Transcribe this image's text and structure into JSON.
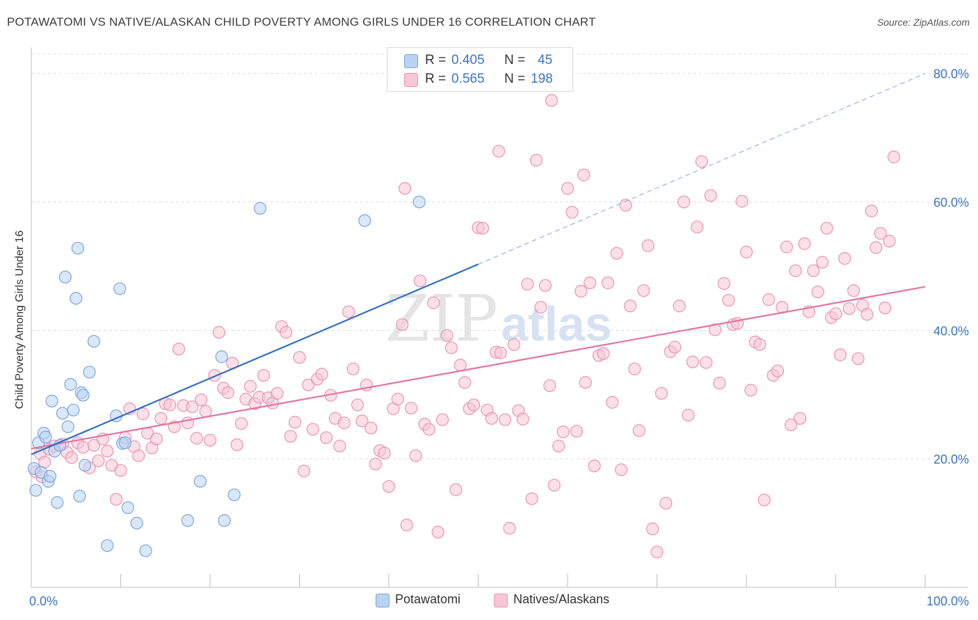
{
  "header": {
    "title": "POTAWATOMI VS NATIVE/ALASKAN CHILD POVERTY AMONG GIRLS UNDER 16 CORRELATION CHART",
    "source": "Source: ZipAtlas.com"
  },
  "watermark": {
    "zip": "ZIP",
    "atlas": "atlas"
  },
  "legend_top": {
    "rows": [
      {
        "r_label": "R =",
        "r_value": "0.405",
        "n_label": "N =",
        "n_value": "45"
      },
      {
        "r_label": "R =",
        "r_value": "0.565",
        "n_label": "N =",
        "n_value": "198"
      }
    ]
  },
  "legend_bottom": {
    "items": [
      {
        "label": "Potawatomi"
      },
      {
        "label": "Natives/Alaskans"
      }
    ]
  },
  "colors": {
    "blue_fill": "#b9d3f3",
    "blue_stroke": "#7aa6dd",
    "blue_line": "#2d6ec8",
    "pink_fill": "#f8c6d6",
    "pink_stroke": "#e993b2",
    "pink_line": "#e4739e",
    "tick_label": "#3a74c4",
    "grid": "#dcdcdc"
  },
  "chart_data": {
    "type": "scatter",
    "title": "POTAWATOMI VS NATIVE/ALASKAN CHILD POVERTY AMONG GIRLS UNDER 16 CORRELATION CHART",
    "xlabel": "",
    "ylabel": "Child Poverty Among Girls Under 16",
    "xlim": [
      0,
      100
    ],
    "ylim": [
      0,
      83
    ],
    "x_tick_labels": [
      "0.0%",
      "100.0%"
    ],
    "y_ticks": [
      20,
      40,
      60,
      80
    ],
    "y_tick_labels": [
      "20.0%",
      "40.0%",
      "60.0%",
      "80.0%"
    ],
    "grid": true,
    "legend_position": "top-center",
    "series": [
      {
        "name": "Potawatomi",
        "R": 0.405,
        "N": 45,
        "trend": {
          "x": [
            0,
            50
          ],
          "y": [
            20.7,
            50.3
          ]
        },
        "trend_extension": {
          "x": [
            50,
            100
          ],
          "y": [
            50.3,
            80.0
          ]
        },
        "points": [
          [
            0.3,
            18.5
          ],
          [
            0.5,
            15.1
          ],
          [
            0.8,
            22.5
          ],
          [
            1.1,
            17.9
          ],
          [
            1.4,
            24.0
          ],
          [
            1.6,
            23.4
          ],
          [
            1.9,
            16.5
          ],
          [
            2.1,
            17.3
          ],
          [
            2.3,
            29.0
          ],
          [
            2.6,
            21.2
          ],
          [
            2.9,
            13.2
          ],
          [
            3.2,
            22.1
          ],
          [
            3.5,
            27.1
          ],
          [
            3.8,
            48.3
          ],
          [
            4.1,
            25.0
          ],
          [
            4.4,
            31.6
          ],
          [
            4.7,
            27.6
          ],
          [
            5.0,
            45.0
          ],
          [
            5.2,
            52.8
          ],
          [
            5.4,
            14.2
          ],
          [
            5.6,
            30.3
          ],
          [
            5.8,
            29.9
          ],
          [
            6.0,
            19.0
          ],
          [
            6.5,
            33.5
          ],
          [
            7.0,
            38.3
          ],
          [
            8.5,
            6.5
          ],
          [
            9.5,
            26.7
          ],
          [
            9.9,
            46.5
          ],
          [
            10.2,
            22.4
          ],
          [
            10.5,
            22.5
          ],
          [
            10.8,
            12.4
          ],
          [
            11.8,
            10.0
          ],
          [
            12.8,
            5.7
          ],
          [
            17.5,
            10.4
          ],
          [
            18.9,
            16.5
          ],
          [
            21.3,
            35.9
          ],
          [
            21.6,
            10.4
          ],
          [
            22.7,
            14.4
          ],
          [
            25.6,
            59.0
          ],
          [
            37.3,
            57.1
          ],
          [
            43.4,
            60.0
          ]
        ]
      },
      {
        "name": "Natives/Alaskans",
        "R": 0.565,
        "N": 198,
        "trend": {
          "x": [
            0,
            100
          ],
          "y": [
            21.6,
            46.8
          ]
        },
        "points": [
          [
            0.5,
            18.0
          ],
          [
            1.0,
            20.8
          ],
          [
            1.2,
            17.2
          ],
          [
            1.5,
            19.5
          ],
          [
            2.0,
            21.5
          ],
          [
            2.6,
            22.0
          ],
          [
            3.5,
            22.3
          ],
          [
            4.0,
            21.0
          ],
          [
            4.5,
            20.2
          ],
          [
            5.2,
            22.5
          ],
          [
            5.8,
            21.8
          ],
          [
            6.5,
            18.6
          ],
          [
            7.0,
            22.1
          ],
          [
            7.5,
            19.7
          ],
          [
            8.0,
            23.1
          ],
          [
            8.5,
            21.2
          ],
          [
            9.0,
            19.0
          ],
          [
            9.5,
            13.7
          ],
          [
            10.0,
            18.2
          ],
          [
            10.5,
            23.3
          ],
          [
            11.0,
            27.8
          ],
          [
            11.5,
            21.9
          ],
          [
            12.0,
            20.5
          ],
          [
            12.5,
            27.0
          ],
          [
            13.0,
            24.0
          ],
          [
            13.5,
            21.7
          ],
          [
            14.0,
            23.1
          ],
          [
            14.5,
            26.3
          ],
          [
            15.0,
            28.6
          ],
          [
            15.5,
            28.4
          ],
          [
            16.0,
            25.0
          ],
          [
            16.5,
            37.1
          ],
          [
            17.0,
            28.3
          ],
          [
            17.5,
            25.6
          ],
          [
            18.0,
            28.1
          ],
          [
            18.5,
            23.2
          ],
          [
            19.0,
            29.2
          ],
          [
            19.5,
            27.4
          ],
          [
            20.0,
            22.9
          ],
          [
            20.5,
            33.0
          ],
          [
            21.0,
            39.7
          ],
          [
            21.5,
            31.0
          ],
          [
            22.0,
            30.3
          ],
          [
            22.5,
            34.9
          ],
          [
            23.0,
            22.2
          ],
          [
            23.5,
            25.5
          ],
          [
            24.0,
            29.3
          ],
          [
            24.5,
            31.3
          ],
          [
            25.0,
            28.6
          ],
          [
            25.5,
            29.6
          ],
          [
            26.0,
            33.0
          ],
          [
            26.5,
            29.5
          ],
          [
            27.0,
            28.7
          ],
          [
            27.5,
            30.2
          ],
          [
            28.0,
            40.6
          ],
          [
            28.5,
            39.7
          ],
          [
            29.0,
            23.5
          ],
          [
            29.5,
            25.7
          ],
          [
            30.0,
            35.8
          ],
          [
            30.5,
            18.1
          ],
          [
            31.0,
            31.5
          ],
          [
            31.5,
            24.6
          ],
          [
            32.0,
            32.4
          ],
          [
            32.5,
            33.2
          ],
          [
            33.0,
            23.3
          ],
          [
            33.5,
            29.9
          ],
          [
            34.0,
            26.3
          ],
          [
            34.5,
            22.0
          ],
          [
            35.0,
            25.6
          ],
          [
            35.5,
            42.9
          ],
          [
            36.0,
            34.0
          ],
          [
            36.5,
            28.4
          ],
          [
            37.0,
            25.9
          ],
          [
            37.5,
            31.5
          ],
          [
            38.0,
            24.8
          ],
          [
            38.5,
            19.2
          ],
          [
            39.0,
            21.3
          ],
          [
            39.5,
            20.9
          ],
          [
            40.0,
            15.7
          ],
          [
            40.5,
            27.8
          ],
          [
            41.0,
            29.3
          ],
          [
            41.5,
            40.9
          ],
          [
            42.0,
            9.7
          ],
          [
            42.5,
            27.9
          ],
          [
            43.0,
            20.5
          ],
          [
            43.5,
            47.7
          ],
          [
            44.0,
            25.4
          ],
          [
            44.5,
            24.6
          ],
          [
            45.0,
            44.3
          ],
          [
            45.5,
            8.6
          ],
          [
            46.0,
            26.1
          ],
          [
            46.5,
            39.2
          ],
          [
            47.0,
            37.3
          ],
          [
            47.5,
            15.2
          ],
          [
            48.0,
            34.6
          ],
          [
            48.5,
            31.9
          ],
          [
            49.0,
            27.8
          ],
          [
            49.5,
            28.4
          ],
          [
            50.0,
            56.0
          ],
          [
            50.5,
            55.9
          ],
          [
            51.0,
            27.6
          ],
          [
            51.5,
            26.3
          ],
          [
            52.0,
            36.6
          ],
          [
            52.5,
            36.5
          ],
          [
            53.0,
            26.1
          ],
          [
            53.5,
            9.2
          ],
          [
            54.0,
            37.8
          ],
          [
            54.5,
            27.5
          ],
          [
            55.0,
            26.2
          ],
          [
            55.5,
            47.2
          ],
          [
            56.0,
            13.8
          ],
          [
            56.5,
            66.5
          ],
          [
            57.0,
            43.6
          ],
          [
            57.5,
            47.0
          ],
          [
            58.0,
            31.4
          ],
          [
            58.5,
            15.9
          ],
          [
            59.0,
            22.0
          ],
          [
            59.5,
            24.2
          ],
          [
            60.0,
            62.1
          ],
          [
            60.5,
            58.4
          ],
          [
            61.0,
            24.3
          ],
          [
            61.5,
            46.1
          ],
          [
            62.0,
            31.9
          ],
          [
            62.5,
            47.4
          ],
          [
            63.0,
            18.9
          ],
          [
            63.5,
            36.1
          ],
          [
            64.0,
            36.4
          ],
          [
            64.5,
            47.4
          ],
          [
            65.0,
            28.8
          ],
          [
            65.5,
            52.0
          ],
          [
            66.0,
            18.3
          ],
          [
            66.5,
            59.5
          ],
          [
            67.0,
            43.8
          ],
          [
            67.5,
            34.0
          ],
          [
            68.0,
            24.4
          ],
          [
            68.5,
            46.2
          ],
          [
            69.0,
            53.2
          ],
          [
            69.5,
            9.1
          ],
          [
            70.0,
            5.5
          ],
          [
            70.5,
            30.2
          ],
          [
            71.0,
            13.1
          ],
          [
            71.5,
            36.7
          ],
          [
            72.0,
            37.4
          ],
          [
            72.5,
            43.8
          ],
          [
            73.0,
            60.0
          ],
          [
            73.5,
            26.8
          ],
          [
            74.0,
            35.1
          ],
          [
            74.5,
            56.1
          ],
          [
            75.0,
            66.3
          ],
          [
            75.5,
            35.0
          ],
          [
            76.0,
            61.0
          ],
          [
            76.5,
            40.1
          ],
          [
            77.0,
            31.8
          ],
          [
            77.5,
            47.3
          ],
          [
            78.0,
            44.7
          ],
          [
            78.5,
            40.9
          ],
          [
            79.0,
            41.1
          ],
          [
            79.5,
            60.1
          ],
          [
            80.0,
            52.2
          ],
          [
            80.5,
            30.7
          ],
          [
            81.0,
            38.2
          ],
          [
            81.5,
            37.8
          ],
          [
            82.0,
            13.6
          ],
          [
            82.5,
            44.8
          ],
          [
            83.0,
            33.0
          ],
          [
            83.5,
            33.7
          ],
          [
            84.0,
            43.6
          ],
          [
            84.5,
            53.0
          ],
          [
            85.0,
            25.3
          ],
          [
            85.5,
            49.3
          ],
          [
            86.0,
            26.3
          ],
          [
            86.5,
            53.5
          ],
          [
            87.0,
            42.9
          ],
          [
            87.5,
            49.3
          ],
          [
            88.0,
            46.0
          ],
          [
            88.5,
            50.6
          ],
          [
            89.0,
            55.9
          ],
          [
            89.5,
            42.0
          ],
          [
            90.0,
            42.6
          ],
          [
            90.5,
            36.2
          ],
          [
            91.0,
            51.2
          ],
          [
            91.5,
            43.4
          ],
          [
            92.0,
            46.2
          ],
          [
            92.5,
            35.6
          ],
          [
            93.0,
            43.9
          ],
          [
            93.5,
            42.5
          ],
          [
            94.0,
            58.6
          ],
          [
            94.5,
            52.9
          ],
          [
            95.0,
            55.1
          ],
          [
            95.5,
            43.5
          ],
          [
            96.0,
            53.9
          ],
          [
            96.5,
            67.0
          ],
          [
            52.3,
            67.9
          ],
          [
            58.2,
            75.8
          ],
          [
            41.8,
            62.1
          ],
          [
            61.8,
            64.2
          ]
        ]
      }
    ]
  }
}
